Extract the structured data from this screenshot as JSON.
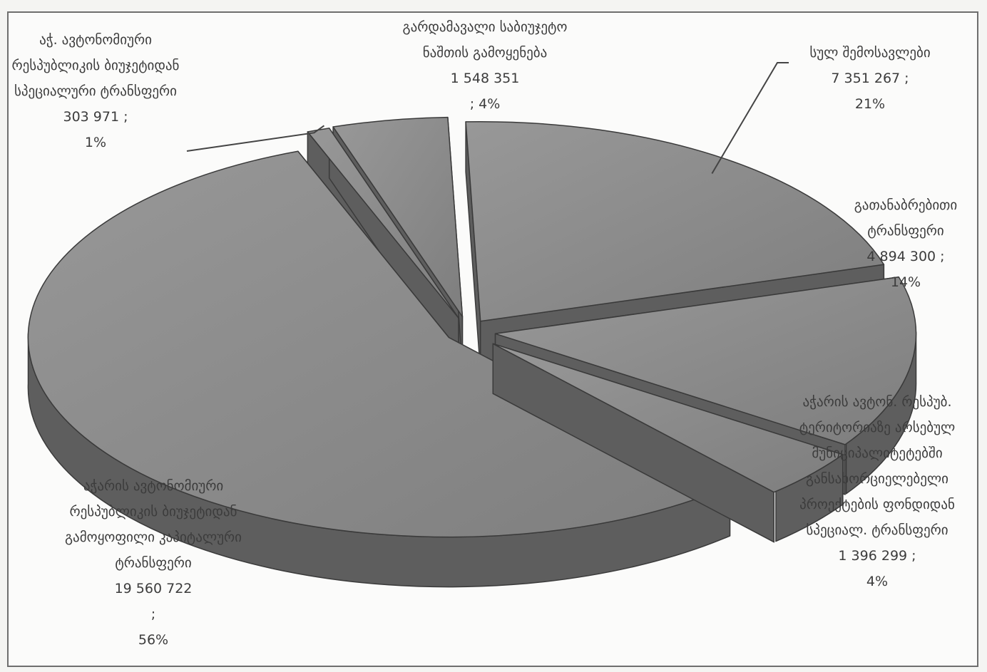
{
  "chart_data": {
    "type": "pie",
    "title": "",
    "style": "3d-exploded-grayscale",
    "slices": [
      {
        "label": "სულ შემოსავლები",
        "value": 7351267,
        "percent": 21,
        "value_text": "7 351 267 ;",
        "percent_text": "21%"
      },
      {
        "label": "გათანაბრებითი ტრანსფერი",
        "value": 4894300,
        "percent": 14,
        "value_text": "4 894 300 ;",
        "percent_text": "14%"
      },
      {
        "label": "აჭარის ავტონ. რესპუბ. ტერიტორიაზე არსებულ მუნიციპალიტეტებში განსახორციელებელი პროექტების ფონდიდან სპეციალ. ტრანსფერი",
        "value": 1396299,
        "percent": 4,
        "value_text": "1 396 299 ;",
        "percent_text": "4%"
      },
      {
        "label": "აჭარის ავტონომიური რესპუბლიკის ბიუჯეტიდან გამოყოფილი კაპიტალური ტრანსფერი",
        "value": 19560722,
        "percent": 56,
        "value_text": "19 560 722",
        "value_suffix": ";",
        "percent_text": "56%"
      },
      {
        "label": "აჭ. ავტონომიური რესპუბლიკის ბიუჯეტიდან სპეციალური ტრანსფერი",
        "value": 303971,
        "percent": 1,
        "value_text": "303 971 ;",
        "percent_text": "1%"
      },
      {
        "label": "გარდამავალი საბიუჯეტო ნაშთის გამოყენება",
        "value": 1548351,
        "percent": 4,
        "value_text": "1 548 351",
        "percent_text": "; 4%"
      }
    ],
    "colors": {
      "top": "#8c8c8c",
      "side": "#5e5e5e",
      "edge": "#3a3a3a",
      "leader": "#444444"
    }
  }
}
